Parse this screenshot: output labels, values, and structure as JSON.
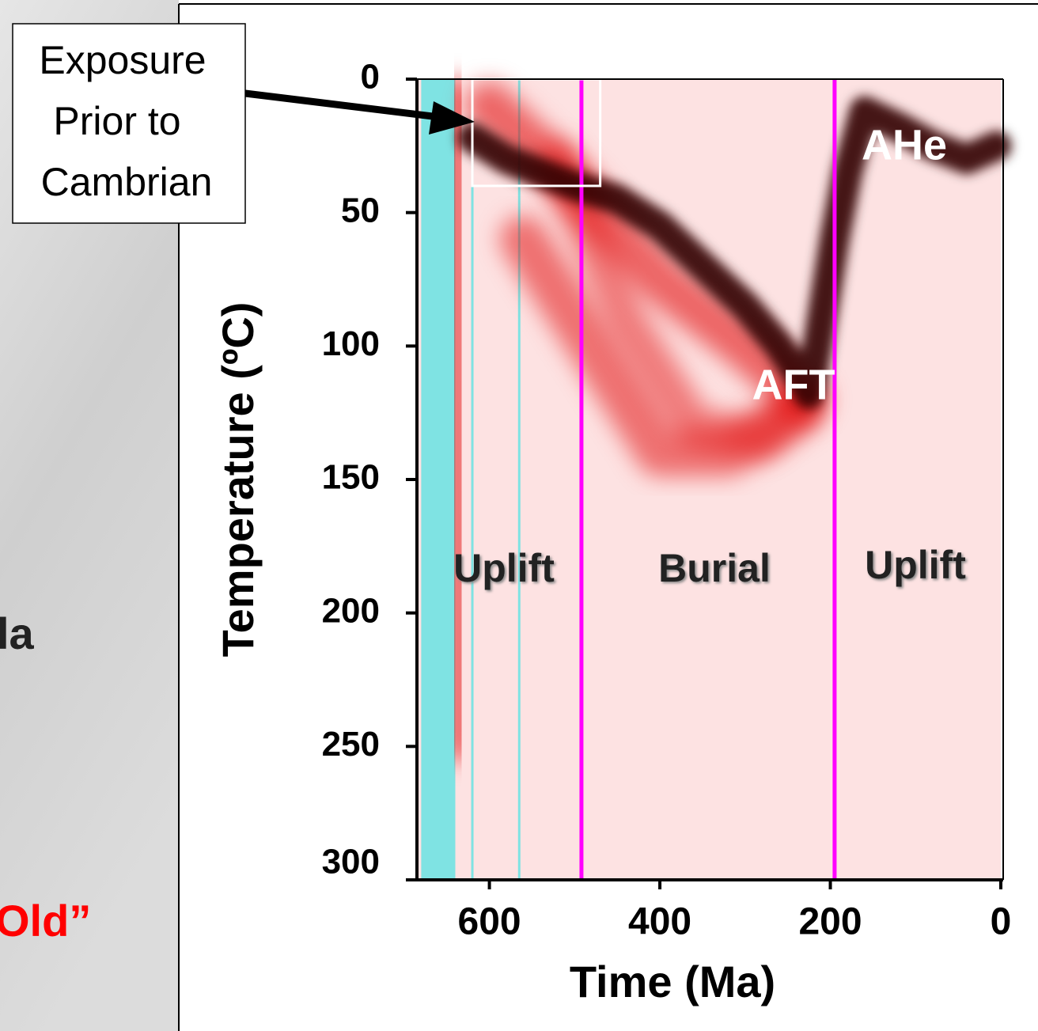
{
  "chart_data": {
    "type": "density-paths",
    "xlabel": "Time (Ma)",
    "ylabel": "Temperature (ºC)",
    "xlim": [
      685,
      0
    ],
    "ylim": [
      0,
      300
    ],
    "xticks": [
      600,
      400,
      200,
      0
    ],
    "yticks": [
      0,
      50,
      100,
      150,
      200,
      250,
      300
    ],
    "y_inverted": true,
    "background": "#fde2e2",
    "series": [
      {
        "color": "#e00000",
        "x": [
          640,
          638,
          636,
          634
        ],
        "y": [
          5,
          80,
          170,
          250
        ]
      },
      {
        "color": "#e00000",
        "x": [
          600,
          500,
          400,
          300,
          230
        ],
        "y": [
          10,
          40,
          75,
          100,
          120
        ]
      },
      {
        "color": "#e00000",
        "x": [
          560,
          480,
          400,
          320,
          240
        ],
        "y": [
          60,
          100,
          140,
          140,
          125
        ]
      },
      {
        "color": "#e00000",
        "x": [
          520,
          440,
          360,
          280,
          235
        ],
        "y": [
          30,
          90,
          130,
          135,
          120
        ]
      },
      {
        "color": "#300000",
        "x": [
          620,
          580,
          540,
          500,
          450,
          400,
          350,
          300,
          260,
          235,
          225,
          215,
          205,
          195,
          180,
          160,
          120,
          80,
          40,
          5
        ],
        "y": [
          22,
          30,
          35,
          40,
          45,
          55,
          70,
          85,
          100,
          112,
          118,
          100,
          80,
          60,
          35,
          12,
          18,
          25,
          30,
          25
        ]
      }
    ],
    "time_markers": [
      {
        "x": 492,
        "color": "#ff00ff"
      },
      {
        "x": 195,
        "color": "#ff00ff"
      }
    ],
    "cyan_band": {
      "x": [
        680,
        640
      ],
      "color": "#7fe3e3"
    },
    "cyan_lines": [
      620,
      565
    ],
    "highlight_box": {
      "x": [
        620,
        470
      ],
      "y": [
        0,
        40
      ]
    },
    "annotations": [
      "AHe",
      "AFT",
      "Uplift",
      "Burial",
      "Uplift"
    ],
    "callout": [
      "Exposure",
      "Prior to",
      "Cambrian"
    ]
  },
  "slide_text": [
    "la",
    "Old”"
  ]
}
